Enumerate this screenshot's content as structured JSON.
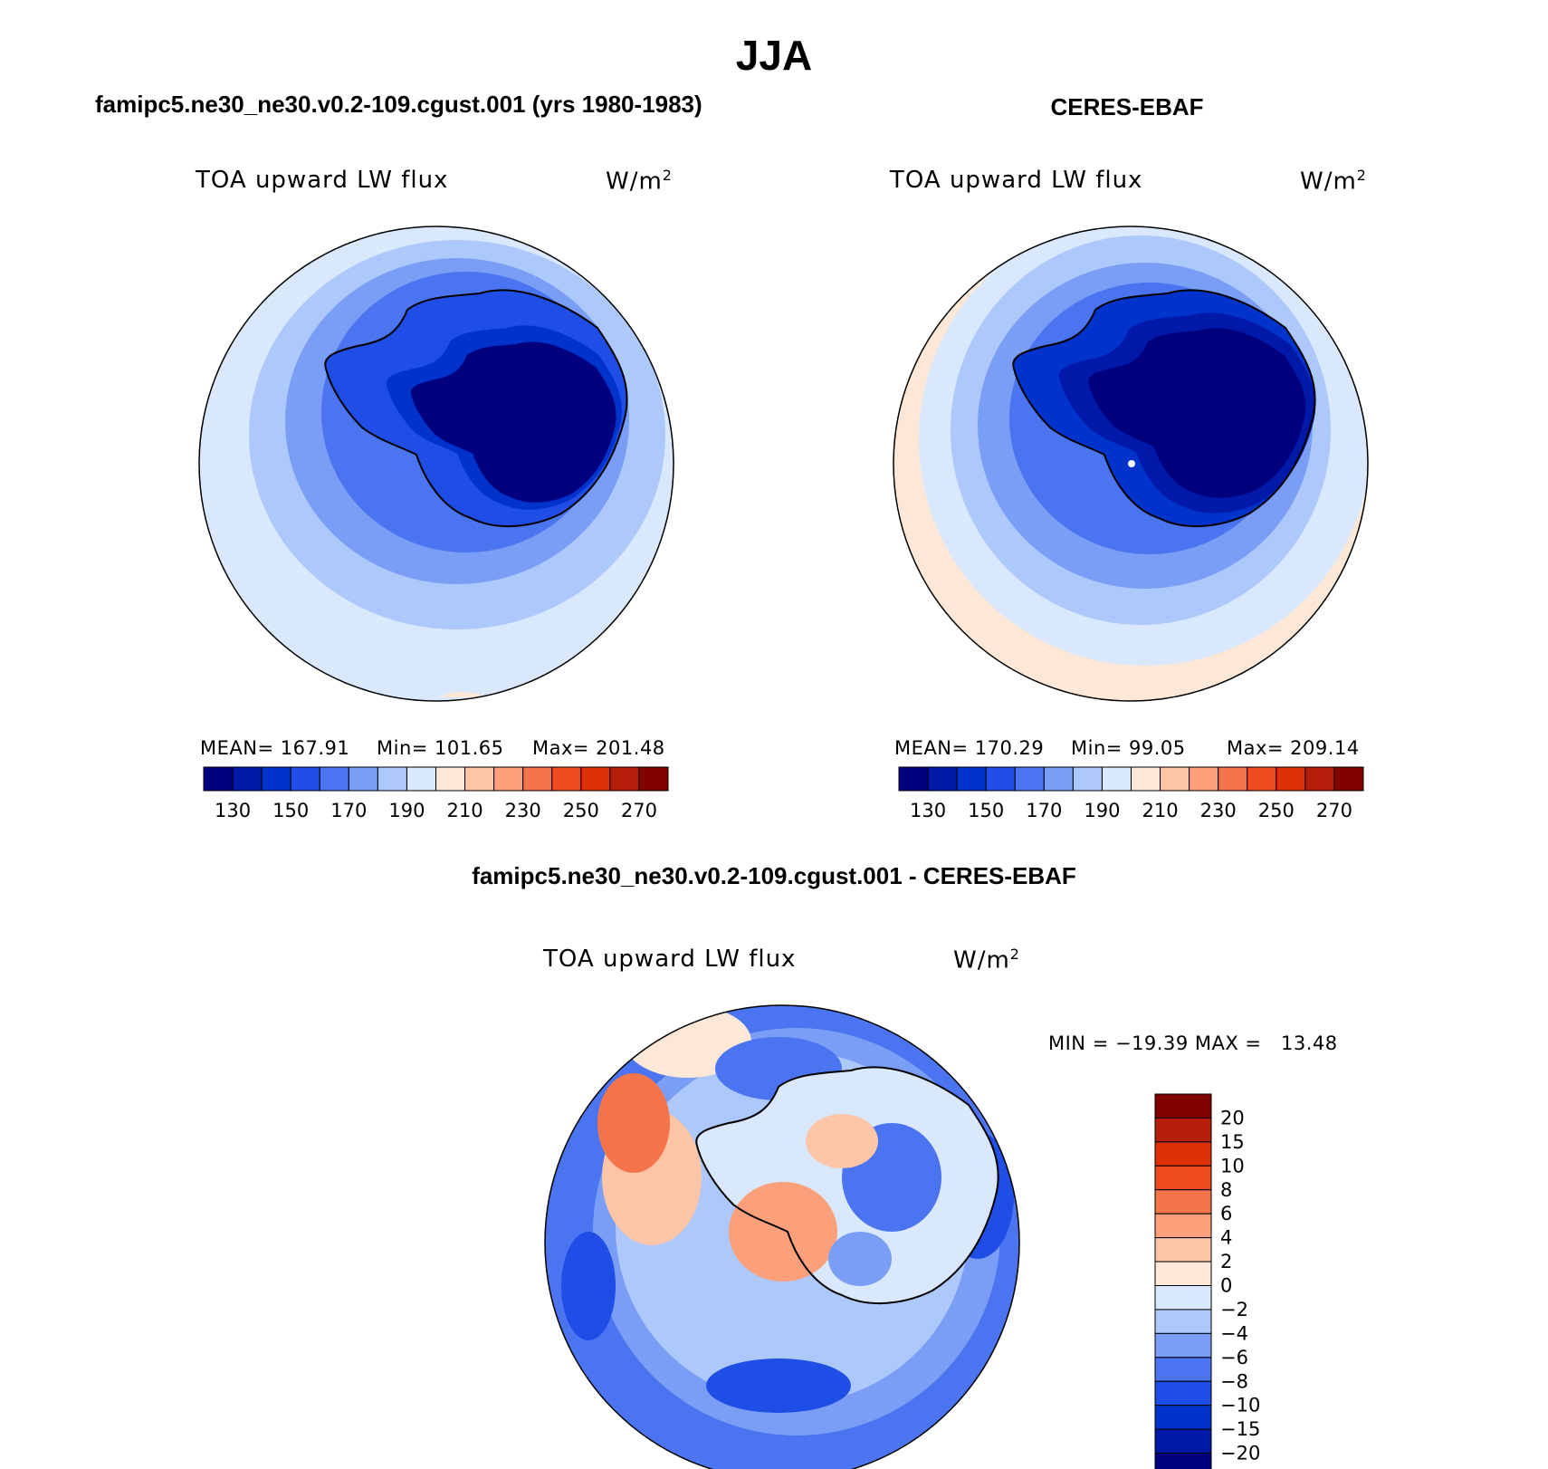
{
  "title": "JJA",
  "left_panel": {
    "header": "famipc5.ne30_ne30.v0.2-109.cgust.001 (yrs 1980-1983)",
    "variable": "TOA upward LW flux",
    "units": "W/m",
    "units_exp": "2",
    "stats": {
      "mean": "MEAN= 167.91",
      "min": "Min= 101.65",
      "max": "Max= 201.48"
    }
  },
  "right_panel": {
    "header": "CERES-EBAF",
    "variable": "TOA upward LW flux",
    "units": "W/m",
    "units_exp": "2",
    "stats": {
      "mean": "MEAN= 170.29",
      "min": "Min=  99.05",
      "max": "Max= 209.14"
    }
  },
  "diff_panel": {
    "header": "famipc5.ne30_ne30.v0.2-109.cgust.001 - CERES-EBAF",
    "variable": "TOA upward LW flux",
    "units": "W/m",
    "units_exp": "2",
    "minmax": "MIN = −19.39 MAX =   13.48"
  },
  "colorbar_abs": {
    "colors": [
      "#00007f",
      "#0019a8",
      "#0033cc",
      "#1f4ee6",
      "#4a74f0",
      "#7a9ef5",
      "#adc8fa",
      "#d9e8fd",
      "#fde8d8",
      "#fdc5a8",
      "#fba07a",
      "#f5744a",
      "#ef4a1f",
      "#de3007",
      "#b51f0a",
      "#800000"
    ],
    "tick_labels": [
      "130",
      "150",
      "170",
      "190",
      "210",
      "230",
      "250",
      "270"
    ]
  },
  "colorbar_diff": {
    "colors": [
      "#00007f",
      "#0019a8",
      "#0033cc",
      "#1f4ee6",
      "#4a74f0",
      "#7a9ef5",
      "#adc8fa",
      "#d9e8fd",
      "#fde8d8",
      "#fdc5a8",
      "#fba07a",
      "#f5744a",
      "#ef4a1f",
      "#de3007",
      "#b51f0a",
      "#800000"
    ],
    "tick_labels": [
      "20",
      "15",
      "10",
      "8",
      "6",
      "4",
      "2",
      "0",
      "−2",
      "−4",
      "−6",
      "−8",
      "−10",
      "−15",
      "−20"
    ]
  }
}
